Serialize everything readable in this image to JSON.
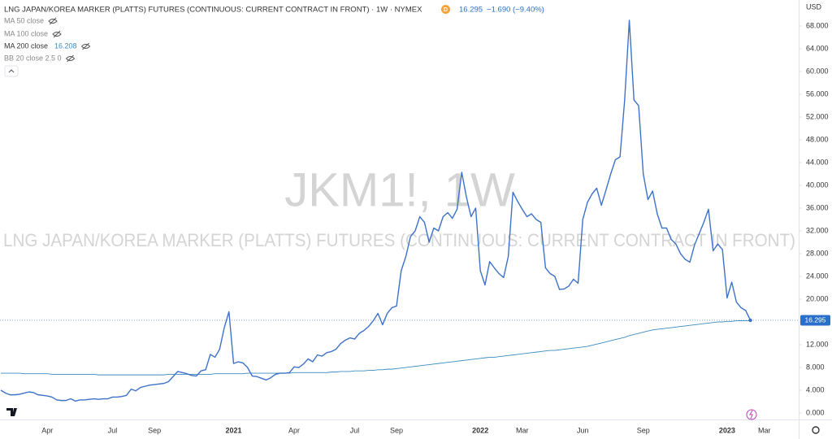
{
  "chart_data": {
    "type": "line",
    "currency": "USD",
    "watermark": "JKM1!, 1W",
    "watermark_subtitle": "LNG JAPAN/KOREA MARKER (PLATTS) FUTURES (CONTINUOUS: CURRENT CONTRACT IN FRONT)",
    "badge": "D",
    "change": "−1.690 (−9.40%)",
    "indicators": [
      "MA 50 close",
      "MA 100 close",
      "BB 20 close 2.5 0"
    ],
    "categories": [
      null,
      null,
      null,
      null,
      null,
      null,
      null,
      null,
      null,
      null,
      "Apr",
      null,
      null,
      null,
      null,
      null,
      null,
      null,
      null,
      null,
      null,
      null,
      null,
      null,
      "Jul",
      null,
      null,
      null,
      null,
      null,
      null,
      null,
      null,
      "Sep",
      null,
      null,
      null,
      null,
      null,
      null,
      null,
      null,
      null,
      null,
      null,
      null,
      null,
      null,
      null,
      null,
      "2021",
      null,
      null,
      null,
      null,
      null,
      null,
      null,
      null,
      null,
      null,
      null,
      null,
      "Apr",
      null,
      null,
      null,
      null,
      null,
      null,
      null,
      null,
      null,
      null,
      null,
      null,
      "Jul",
      null,
      null,
      null,
      null,
      null,
      null,
      null,
      null,
      "Sep",
      null,
      null,
      null,
      null,
      null,
      null,
      null,
      null,
      null,
      null,
      null,
      null,
      null,
      null,
      null,
      null,
      null,
      "2022",
      null,
      null,
      null,
      null,
      null,
      null,
      null,
      null,
      "Mar",
      null,
      null,
      null,
      null,
      null,
      null,
      null,
      null,
      null,
      null,
      null,
      null,
      "Jun",
      null,
      null,
      null,
      null,
      null,
      null,
      null,
      null,
      null,
      null,
      null,
      null,
      "Sep",
      null,
      null,
      null,
      null,
      null,
      null,
      null,
      null,
      null,
      null,
      null,
      null,
      null,
      null,
      null,
      null,
      null,
      "2023",
      null,
      null,
      null,
      null,
      null,
      null,
      null,
      "Mar",
      null,
      null,
      null,
      null,
      null,
      null,
      null
    ],
    "series": [
      {
        "name": "LNG JAPAN/KOREA MARKER (PLATTS) FUTURES (CONTINUOUS: CURRENT CONTRACT IN FRONT) · 1W · NYMEX",
        "color": "#3d72c9",
        "values": [
          4.0,
          3.5,
          3.2,
          3.2,
          3.3,
          3.5,
          3.7,
          3.6,
          3.2,
          3.1,
          3.0,
          2.8,
          2.3,
          2.2,
          2.2,
          2.5,
          2.1,
          2.3,
          2.3,
          2.4,
          2.5,
          2.4,
          2.5,
          2.5,
          2.8,
          2.8,
          2.9,
          3.1,
          4.2,
          3.9,
          4.5,
          4.7,
          4.9,
          5.0,
          5.1,
          5.2,
          5.5,
          6.4,
          7.3,
          7.1,
          6.9,
          6.6,
          6.5,
          7.4,
          7.6,
          10.3,
          9.8,
          11.2,
          15.0,
          17.8,
          8.7,
          9.0,
          8.8,
          8.0,
          6.5,
          6.4,
          6.1,
          5.8,
          6.2,
          6.8,
          7.0,
          7.0,
          7.1,
          8.1,
          8.0,
          8.6,
          9.5,
          9.0,
          10.2,
          10.0,
          10.6,
          10.8,
          11.2,
          12.2,
          12.8,
          13.2,
          13.0,
          14.0,
          14.5,
          15.2,
          16.2,
          17.5,
          15.5,
          17.5,
          18.5,
          18.8,
          25.0,
          27.5,
          31.0,
          32.0,
          34.5,
          33.5,
          30.0,
          32.5,
          32.0,
          34.5,
          35.2,
          34.2,
          35.8,
          42.3,
          38.0,
          34.5,
          36.0,
          25.0,
          22.5,
          26.6,
          25.5,
          24.5,
          23.8,
          27.5,
          38.8,
          37.2,
          35.8,
          34.5,
          35.0,
          34.0,
          33.5,
          25.5,
          24.5,
          24.0,
          21.7,
          21.8,
          22.3,
          23.5,
          22.8,
          34.0,
          37.0,
          38.5,
          39.5,
          36.5,
          39.2,
          42.0,
          44.5,
          45.0,
          55.0,
          69.0,
          55.0,
          54.0,
          42.0,
          37.5,
          39.0,
          35.0,
          32.5,
          32.5,
          30.5,
          29.7,
          28.0,
          27.0,
          26.5,
          29.5,
          31.5,
          33.5,
          35.8,
          28.5,
          29.7,
          28.7,
          20.2,
          23.0,
          19.5,
          18.5,
          18.0,
          16.295,
          null,
          null,
          null,
          null,
          null,
          null,
          null,
          null,
          null,
          null
        ]
      },
      {
        "name": "MA 200 close",
        "color": "#3b8bbf",
        "values": [
          7.0,
          7.0,
          7.0,
          7.0,
          7.0,
          6.9,
          6.9,
          6.9,
          6.9,
          6.9,
          6.9,
          6.8,
          6.8,
          6.8,
          6.8,
          6.8,
          6.8,
          6.8,
          6.8,
          6.8,
          6.8,
          6.7,
          6.7,
          6.7,
          6.7,
          6.7,
          6.7,
          6.7,
          6.7,
          6.7,
          6.7,
          6.7,
          6.7,
          6.7,
          6.7,
          6.7,
          6.8,
          6.8,
          6.8,
          6.8,
          6.8,
          6.8,
          6.8,
          6.8,
          6.8,
          6.8,
          6.9,
          6.9,
          6.9,
          6.9,
          6.9,
          6.9,
          6.9,
          7.0,
          7.0,
          7.0,
          7.0,
          7.0,
          7.0,
          7.0,
          7.0,
          7.0,
          7.0,
          7.1,
          7.1,
          7.1,
          7.1,
          7.1,
          7.1,
          7.1,
          7.1,
          7.2,
          7.2,
          7.3,
          7.3,
          7.3,
          7.4,
          7.4,
          7.4,
          7.5,
          7.5,
          7.6,
          7.6,
          7.7,
          7.7,
          7.8,
          7.9,
          8.0,
          8.1,
          8.2,
          8.3,
          8.4,
          8.5,
          8.6,
          8.7,
          8.8,
          8.9,
          9.0,
          9.1,
          9.2,
          9.3,
          9.4,
          9.5,
          9.6,
          9.7,
          9.8,
          9.8,
          9.9,
          10.0,
          10.1,
          10.2,
          10.3,
          10.4,
          10.5,
          10.6,
          10.7,
          10.8,
          10.9,
          11.0,
          11.0,
          11.1,
          11.2,
          11.3,
          11.4,
          11.5,
          11.6,
          11.7,
          11.9,
          12.1,
          12.3,
          12.5,
          12.7,
          12.9,
          13.1,
          13.3,
          13.6,
          13.8,
          14.0,
          14.2,
          14.4,
          14.6,
          14.7,
          14.8,
          14.9,
          15.0,
          15.1,
          15.2,
          15.3,
          15.4,
          15.5,
          15.6,
          15.7,
          15.8,
          15.9,
          16.0,
          16.0,
          16.1,
          16.1,
          16.2,
          16.2,
          16.2,
          16.208,
          null,
          null,
          null,
          null,
          null,
          null,
          null,
          null,
          null,
          null
        ]
      }
    ],
    "ylim": [
      -1.14,
      72.57
    ],
    "yticks": [
      {
        "value": 0,
        "label": "0.000"
      },
      {
        "value": 4,
        "label": "4.000"
      },
      {
        "value": 8,
        "label": "8.000"
      },
      {
        "value": 12,
        "label": "12.000"
      },
      {
        "value": 16,
        "label": "16.000"
      },
      {
        "value": 20,
        "label": "20.000"
      },
      {
        "value": 24,
        "label": "24.000"
      },
      {
        "value": 28,
        "label": "28.000"
      },
      {
        "value": 32,
        "label": "32.000"
      },
      {
        "value": 36,
        "label": "36.000"
      },
      {
        "value": 40,
        "label": "40.000"
      },
      {
        "value": 44,
        "label": "44.000"
      },
      {
        "value": 48,
        "label": "48.000"
      },
      {
        "value": 52,
        "label": "52.000"
      },
      {
        "value": 56,
        "label": "56.000"
      },
      {
        "value": 60,
        "label": "60.000"
      },
      {
        "value": 64,
        "label": "64.000"
      },
      {
        "value": 68,
        "label": "68.000"
      }
    ],
    "grid": false
  }
}
